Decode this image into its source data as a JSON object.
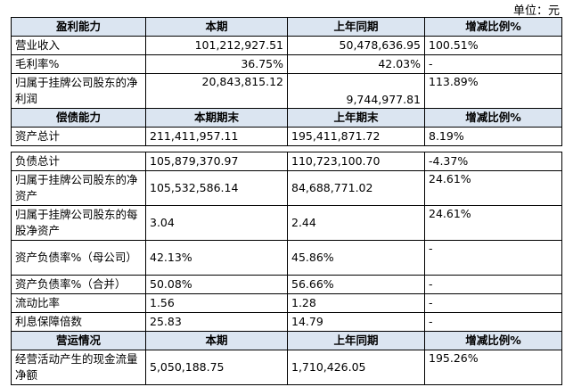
{
  "unit": "单位：元",
  "sections": [
    {
      "header": [
        "盈利能力",
        "本期",
        "上年同期",
        "增减比例%"
      ],
      "rows": [
        [
          "营业收入",
          "101,212,927.51",
          "50,478,636.95",
          "100.51%"
        ],
        [
          "毛利率%",
          "36.75%",
          "42.03%",
          "-"
        ],
        [
          "归属于挂牌公司股东的净利润",
          "20,843,815.12",
          "9,744,977.81",
          "113.89%"
        ]
      ]
    },
    {
      "header": [
        "偿债能力",
        "本期期末",
        "上年期末",
        "增减比例%"
      ],
      "rows": [
        [
          "资产总计",
          "211,411,957.11",
          "195,411,871.72",
          "8.19%"
        ],
        [
          "负债总计",
          "105,879,370.97",
          "110,723,100.70",
          "-4.37%"
        ],
        [
          "归属于挂牌公司股东的净资产",
          "105,532,586.14",
          "84,688,771.02",
          "24.61%"
        ],
        [
          "归属于挂牌公司股东的每股净资产",
          "3.04",
          "2.44",
          "24.61%"
        ],
        [
          "资产负债率%（母公司）",
          "42.13%",
          "45.86%",
          "-"
        ],
        [
          "资产负债率%（合并）",
          "50.08%",
          "56.66%",
          "-"
        ],
        [
          "流动比率",
          "1.56",
          "1.28",
          "-"
        ],
        [
          "利息保障倍数",
          "25.83",
          "14.79",
          "-"
        ]
      ]
    },
    {
      "header": [
        "营运情况",
        "本期",
        "上年同期",
        "增减比例%"
      ],
      "rows": [
        [
          "经营活动产生的现金流量净额",
          "5,050,188.75",
          "1,710,426.05",
          "195.26%"
        ]
      ]
    }
  ]
}
